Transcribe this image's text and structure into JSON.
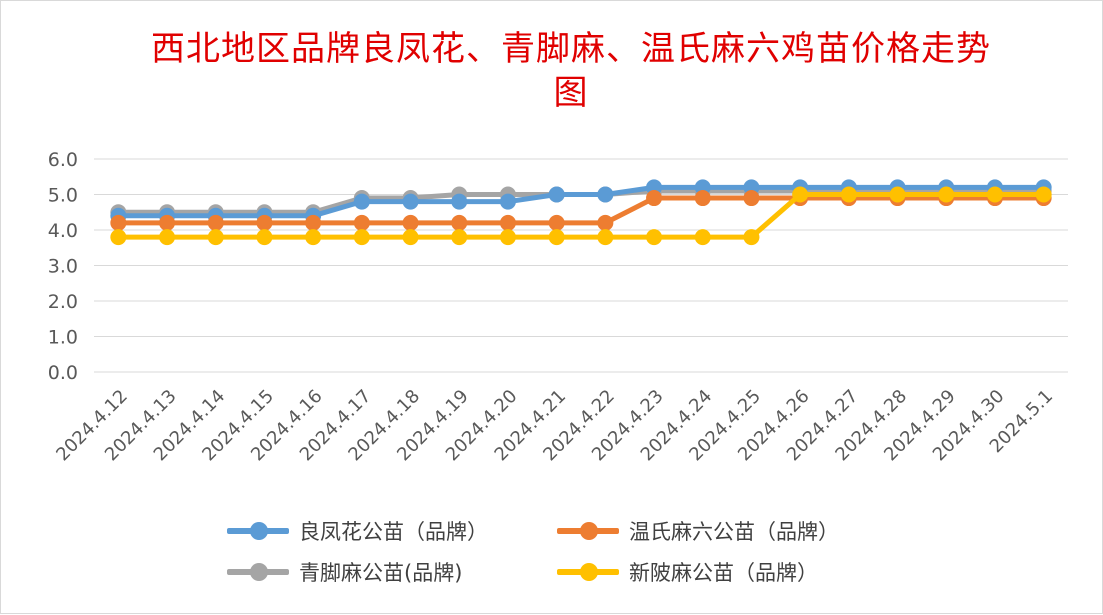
{
  "chart_data": {
    "type": "line",
    "title": "西北地区品牌良凤花、青脚麻、温氏麻六鸡苗价格走势图",
    "categories": [
      "2024.4.12",
      "2024.4.13",
      "2024.4.14",
      "2024.4.15",
      "2024.4.16",
      "2024.4.17",
      "2024.4.18",
      "2024.4.19",
      "2024.4.20",
      "2024.4.21",
      "2024.4.22",
      "2024.4.23",
      "2024.4.24",
      "2024.4.25",
      "2024.4.26",
      "2024.4.27",
      "2024.4.28",
      "2024.4.29",
      "2024.4.30",
      "2024.5.1"
    ],
    "ylim": [
      0,
      6
    ],
    "yticks": [
      "0.0",
      "1.0",
      "2.0",
      "3.0",
      "4.0",
      "5.0",
      "6.0"
    ],
    "grid": true,
    "legend_position": "bottom",
    "series": [
      {
        "name": "良凤花公苗（品牌）",
        "color": "#5b9bd5",
        "values": [
          4.4,
          4.4,
          4.4,
          4.4,
          4.4,
          4.8,
          4.8,
          4.8,
          4.8,
          5.0,
          5.0,
          5.2,
          5.2,
          5.2,
          5.2,
          5.2,
          5.2,
          5.2,
          5.2,
          5.2
        ]
      },
      {
        "name": "温氏麻六公苗（品牌）",
        "color": "#ed7d31",
        "values": [
          4.2,
          4.2,
          4.2,
          4.2,
          4.2,
          4.2,
          4.2,
          4.2,
          4.2,
          4.2,
          4.2,
          4.9,
          4.9,
          4.9,
          4.9,
          4.9,
          4.9,
          4.9,
          4.9,
          4.9
        ]
      },
      {
        "name": "青脚麻公苗(品牌)",
        "color": "#a5a5a5",
        "values": [
          4.5,
          4.5,
          4.5,
          4.5,
          4.5,
          4.9,
          4.9,
          5.0,
          5.0,
          5.0,
          5.0,
          5.1,
          5.1,
          5.1,
          5.1,
          5.1,
          5.1,
          5.1,
          5.1,
          5.1
        ]
      },
      {
        "name": "新陂麻公苗（品牌）",
        "color": "#ffc000",
        "values": [
          3.8,
          3.8,
          3.8,
          3.8,
          3.8,
          3.8,
          3.8,
          3.8,
          3.8,
          3.8,
          3.8,
          3.8,
          3.8,
          3.8,
          5.0,
          5.0,
          5.0,
          5.0,
          5.0,
          5.0
        ]
      }
    ]
  }
}
